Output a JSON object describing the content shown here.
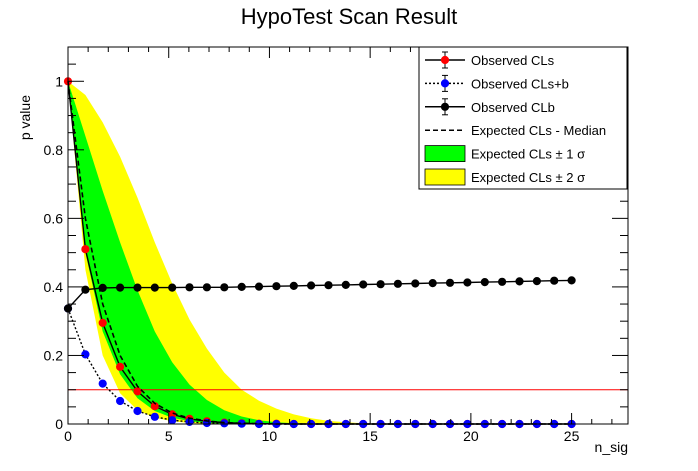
{
  "chart_data": {
    "type": "line",
    "title": "HypoTest Scan Result",
    "xlabel": "n_sig",
    "ylabel": "p value",
    "xlim": [
      0,
      27.8
    ],
    "ylim": [
      0,
      1.1
    ],
    "x_ticks": [
      0,
      5,
      10,
      15,
      20,
      25
    ],
    "y_ticks": [
      0,
      0.2,
      0.4,
      0.6,
      0.8,
      1
    ],
    "threshold": {
      "y": 0.1,
      "color": "#ff0000"
    },
    "x": [
      0,
      0.862,
      1.724,
      2.586,
      3.448,
      4.31,
      5.172,
      6.034,
      6.897,
      7.759,
      8.621,
      9.483,
      10.345,
      11.207,
      12.069,
      12.931,
      13.793,
      14.655,
      15.517,
      16.379,
      17.241,
      18.103,
      18.966,
      19.828,
      20.69,
      21.552,
      22.414,
      23.276,
      24.138,
      25
    ],
    "series": [
      {
        "name": "Observed CLs",
        "color": "#ff0000",
        "line": "solid",
        "values": [
          1.0,
          0.51,
          0.295,
          0.167,
          0.095,
          0.052,
          0.028,
          0.015,
          0.008,
          0.004,
          0.002,
          0.001,
          0.001,
          0,
          0,
          0,
          0,
          0,
          0,
          0,
          0,
          0,
          0,
          0,
          0,
          0,
          0,
          0,
          0,
          0
        ]
      },
      {
        "name": "Observed CLs+b",
        "color": "#0000ff",
        "line": "dotted",
        "values": [
          0.337,
          0.203,
          0.118,
          0.067,
          0.038,
          0.021,
          0.011,
          0.006,
          0.003,
          0.002,
          0.001,
          0,
          0,
          0,
          0,
          0,
          0,
          0,
          0,
          0,
          0,
          0,
          0,
          0,
          0,
          0,
          0,
          0,
          0,
          0
        ]
      },
      {
        "name": "Observed CLb",
        "color": "#000000",
        "line": "solid",
        "values": [
          0.337,
          0.392,
          0.397,
          0.398,
          0.398,
          0.398,
          0.398,
          0.399,
          0.399,
          0.399,
          0.4,
          0.401,
          0.402,
          0.403,
          0.404,
          0.405,
          0.406,
          0.407,
          0.408,
          0.409,
          0.41,
          0.411,
          0.412,
          0.413,
          0.414,
          0.415,
          0.416,
          0.417,
          0.418,
          0.419
        ]
      },
      {
        "name": "Expected CLs - Median",
        "color": "#000000",
        "line": "dashed",
        "values": [
          1.0,
          0.6,
          0.35,
          0.2,
          0.11,
          0.06,
          0.032,
          0.017,
          0.009,
          0.004,
          0.002,
          0.001,
          0,
          0,
          0,
          0,
          0,
          0,
          0,
          0,
          0,
          0,
          0,
          0,
          0,
          0,
          0,
          0,
          0,
          0
        ]
      }
    ],
    "bands": [
      {
        "name": "Expected CLs ± 2 σ",
        "color": "#ffff00",
        "upper": [
          1.0,
          0.96,
          0.88,
          0.78,
          0.66,
          0.53,
          0.41,
          0.305,
          0.22,
          0.15,
          0.1,
          0.068,
          0.045,
          0.028,
          0.017,
          0.009,
          0.005,
          0.002,
          0.001,
          0,
          0,
          0,
          0,
          0,
          0,
          0,
          0,
          0,
          0,
          0
        ],
        "lower": [
          1.0,
          0.45,
          0.2,
          0.09,
          0.04,
          0.018,
          0.008,
          0.003,
          0.001,
          0,
          0,
          0,
          0,
          0,
          0,
          0,
          0,
          0,
          0,
          0,
          0,
          0,
          0,
          0,
          0,
          0,
          0,
          0,
          0,
          0
        ]
      },
      {
        "name": "Expected CLs ± 1 σ",
        "color": "#00ff00",
        "upper": [
          1.0,
          0.84,
          0.68,
          0.53,
          0.39,
          0.27,
          0.18,
          0.115,
          0.07,
          0.04,
          0.022,
          0.011,
          0.005,
          0.002,
          0.001,
          0,
          0,
          0,
          0,
          0,
          0,
          0,
          0,
          0,
          0,
          0,
          0,
          0,
          0,
          0
        ],
        "lower": [
          1.0,
          0.5,
          0.27,
          0.145,
          0.075,
          0.038,
          0.018,
          0.008,
          0.003,
          0.001,
          0,
          0,
          0,
          0,
          0,
          0,
          0,
          0,
          0,
          0,
          0,
          0,
          0,
          0,
          0,
          0,
          0,
          0,
          0,
          0
        ]
      }
    ],
    "legend": {
      "placement": "top-right",
      "entries": [
        {
          "label": "Observed CLs",
          "kind": "marker-line",
          "color": "#ff0000",
          "line": "solid"
        },
        {
          "label": "Observed CLs+b",
          "kind": "marker-line",
          "color": "#0000ff",
          "line": "dotted"
        },
        {
          "label": "Observed CLb",
          "kind": "marker-line",
          "color": "#000000",
          "line": "solid"
        },
        {
          "label": "Expected CLs - Median",
          "kind": "line",
          "color": "#000000",
          "line": "dashed"
        },
        {
          "label": "Expected CLs ± 1 σ",
          "kind": "box",
          "color": "#00ff00"
        },
        {
          "label": "Expected CLs ± 2 σ",
          "kind": "box",
          "color": "#ffff00"
        }
      ]
    }
  }
}
